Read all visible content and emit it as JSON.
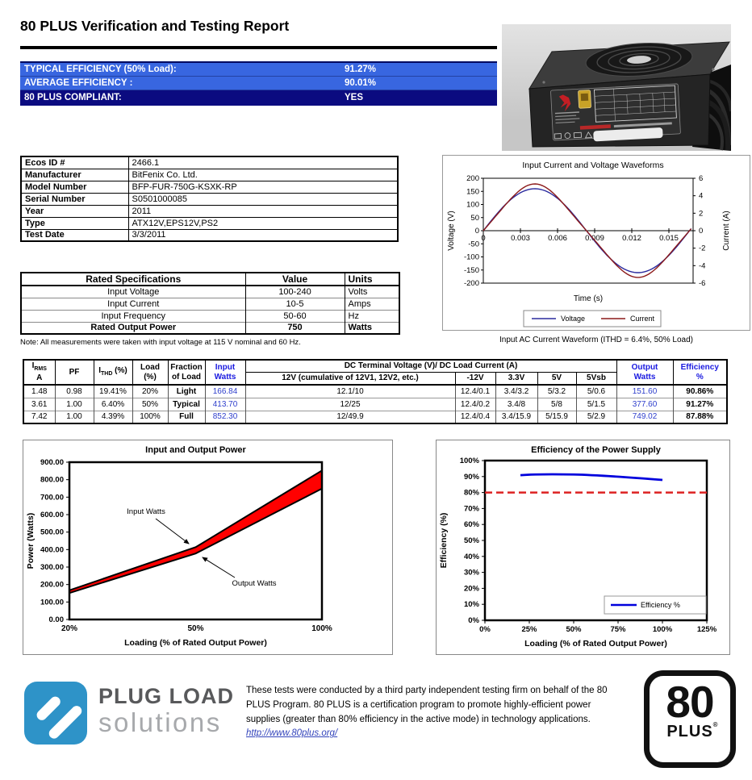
{
  "page": {
    "title": "80 PLUS Verification and Testing Report"
  },
  "summary": {
    "rows": [
      {
        "label": "TYPICAL EFFICIENCY (50% Load):",
        "value": "91.27%",
        "style": "light"
      },
      {
        "label": "AVERAGE EFFICIENCY :",
        "value": "90.01%",
        "style": "light"
      },
      {
        "label": "80 PLUS COMPLIANT:",
        "value": "YES",
        "style": "dark"
      }
    ]
  },
  "info_table": {
    "rows": [
      {
        "label": "Ecos ID #",
        "value": "2466.1"
      },
      {
        "label": "Manufacturer",
        "value": "BitFenix Co. Ltd."
      },
      {
        "label": "Model Number",
        "value": "BFP-FUR-750G-KSXK-RP"
      },
      {
        "label": "Serial Number",
        "value": "S0501000085"
      },
      {
        "label": "Year",
        "value": "2011"
      },
      {
        "label": "Type",
        "value": "ATX12V,EPS12V,PS2"
      },
      {
        "label": "Test Date",
        "value": "3/3/2011"
      }
    ]
  },
  "spec_table": {
    "headers": [
      "Rated Specifications",
      "Value",
      "Units"
    ],
    "rows": [
      [
        "Input Voltage",
        "100-240",
        "Volts"
      ],
      [
        "Input Current",
        "10-5",
        "Amps"
      ],
      [
        "Input Frequency",
        "50-60",
        "Hz"
      ],
      [
        "Rated Output Power",
        "750",
        "Watts"
      ]
    ],
    "note": "Note: All measurements were taken with input voltage at 115 V nominal and 60 Hz."
  },
  "load_table": {
    "headers": {
      "irms": {
        "base": "I",
        "sub": "RMS",
        "line2": "A"
      },
      "pf": "PF",
      "ithd": {
        "base": "I",
        "sub": "THD",
        "suffix": " (%)"
      },
      "load": {
        "line1": "Load",
        "line2": "(%)"
      },
      "fraction": {
        "line1": "Fraction",
        "line2": "of Load"
      },
      "input": {
        "line1": "Input",
        "line2": "Watts"
      },
      "dc": "DC Terminal Voltage (V)/ DC Load Current (A)",
      "v12": "12V (cumulative of 12V1, 12V2, etc.)",
      "vneg12": "-12V",
      "v33": "3.3V",
      "v5": "5V",
      "v5sb": "5Vsb",
      "output": {
        "line1": "Output",
        "line2": "Watts"
      },
      "efficiency": {
        "line1": "Efficiency",
        "line2": "%"
      }
    },
    "rows": [
      [
        "1.48",
        "0.98",
        "19.41%",
        "20%",
        "Light",
        "166.84",
        "12.1/10",
        "12.4/0.1",
        "3.4/3.2",
        "5/3.2",
        "5/0.6",
        "151.60",
        "90.86%"
      ],
      [
        "3.61",
        "1.00",
        "6.40%",
        "50%",
        "Typical",
        "413.70",
        "12/25",
        "12.4/0.2",
        "3.4/8",
        "5/8",
        "5/1.5",
        "377.60",
        "91.27%"
      ],
      [
        "7.42",
        "1.00",
        "4.39%",
        "100%",
        "Full",
        "852.30",
        "12/49.9",
        "12.4/0.4",
        "3.4/15.9",
        "5/15.9",
        "5/2.9",
        "749.02",
        "87.88%"
      ]
    ]
  },
  "chart_data": [
    {
      "id": "waveform",
      "type": "line",
      "title": "Input Current and Voltage Waveforms",
      "xlabel": "Time (s)",
      "ylabel_left": "Voltage (V)",
      "ylabel_right": "Current (A)",
      "x_ticks": [
        0,
        0.003,
        0.006,
        0.009,
        0.012,
        0.015
      ],
      "x_range": [
        0,
        0.017
      ],
      "y_left_ticks": [
        200,
        150,
        100,
        50,
        0,
        -50,
        -100,
        -150,
        -200
      ],
      "y_right_ticks": [
        6,
        4,
        2,
        0,
        -2,
        -4,
        -6
      ],
      "y_left_range": [
        -200,
        200
      ],
      "y_right_range": [
        -6,
        6
      ],
      "frequency_hz": 60,
      "series": [
        {
          "name": "Voltage",
          "axis": "left",
          "amplitude": 160,
          "third_harmonic": 0,
          "color": "#2b2b9e"
        },
        {
          "name": "Current",
          "axis": "right",
          "amplitude": 5.1,
          "third_harmonic": -0.25,
          "color": "#8c1a1a"
        }
      ],
      "caption": "Input AC Current Waveform (ITHD = 6.4%, 50% Load)"
    },
    {
      "id": "power",
      "type": "line",
      "title": "Input and Output Power",
      "xlabel": "Loading (% of Rated Output Power)",
      "ylabel": "Power (Watts)",
      "categories": [
        "20%",
        "50%",
        "100%"
      ],
      "series": [
        {
          "name": "Input Watts",
          "values": [
            166.84,
            413.7,
            852.3
          ]
        },
        {
          "name": "Output Watts",
          "values": [
            151.6,
            377.6,
            749.02
          ]
        }
      ],
      "y_ticks": [
        0,
        100,
        200,
        300,
        400,
        500,
        600,
        700,
        800,
        900
      ],
      "ylim": [
        0,
        900
      ],
      "fill_between_color": "#ff0000",
      "line_color": "#000000"
    },
    {
      "id": "efficiency",
      "type": "line",
      "title": "Efficiency of the Power Supply",
      "xlabel": "Loading (% of Rated Output Power)",
      "ylabel": "Efficiency (%)",
      "x": [
        20,
        50,
        100
      ],
      "values": [
        90.86,
        91.27,
        87.88
      ],
      "x_ticks": [
        0,
        25,
        50,
        75,
        100,
        125
      ],
      "y_ticks": [
        0,
        10,
        20,
        30,
        40,
        50,
        60,
        70,
        80,
        90,
        100
      ],
      "ylim": [
        0,
        100
      ],
      "xlim": [
        0,
        125
      ],
      "threshold": {
        "value": 80,
        "color": "#dd2222",
        "style": "dashed"
      },
      "legend_label": "Efficiency %",
      "line_color": "#0000dd"
    }
  ],
  "footer": {
    "logo_line1": "PLUG LOAD",
    "logo_line2": "solutions",
    "text": "These tests were conducted by a third party independent testing firm on behalf of the 80 PLUS Program. 80 PLUS is a certification program to promote highly-efficient power supplies (greater than 80% efficiency in the active mode) in technology applications.",
    "link": "http://www.80plus.org/",
    "badge_big": "80",
    "badge_small": "PLUS",
    "badge_reg": "®"
  }
}
